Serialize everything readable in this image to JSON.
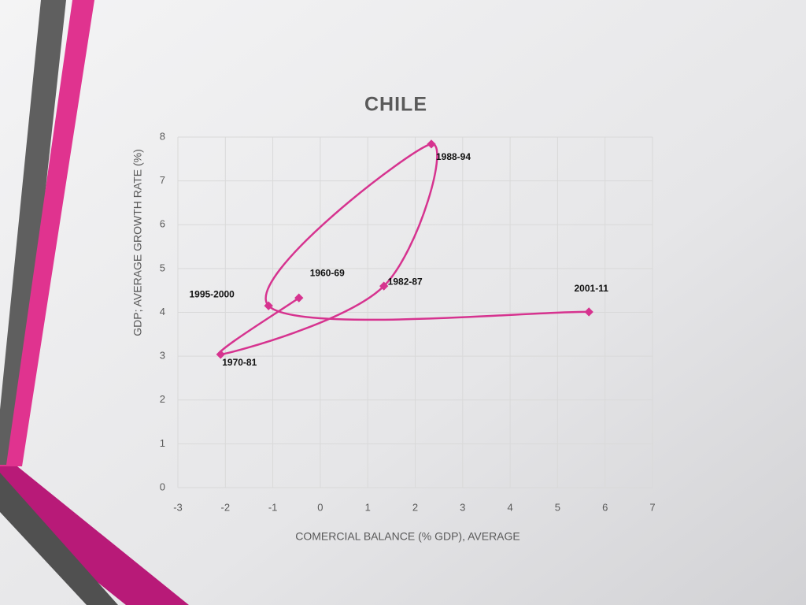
{
  "chart_data": {
    "type": "scatter-smooth",
    "title": "CHILE",
    "x_label": "COMERCIAL BALANCE (% GDP), AVERAGE",
    "y_label": "GDP; AVERAGE GROWTH RATE (%)",
    "point_labels": [
      "1960-69",
      "1970-81",
      "1982-87",
      "1988-94",
      "1995-2000",
      "2001-11"
    ],
    "x": [
      -0.45,
      -2.1,
      1.34,
      2.34,
      -1.09,
      5.66
    ],
    "values": [
      4.33,
      3.04,
      4.6,
      7.84,
      4.15,
      4.01
    ],
    "color": "#d6338f",
    "xlim": [
      -3,
      7
    ],
    "ylim": [
      0,
      8
    ],
    "xticks": [
      -3,
      -2,
      -1,
      0,
      1,
      2,
      3,
      4,
      5,
      6,
      7
    ],
    "yticks": [
      0,
      1,
      2,
      3,
      4,
      5,
      6,
      7,
      8
    ],
    "grid": true
  }
}
